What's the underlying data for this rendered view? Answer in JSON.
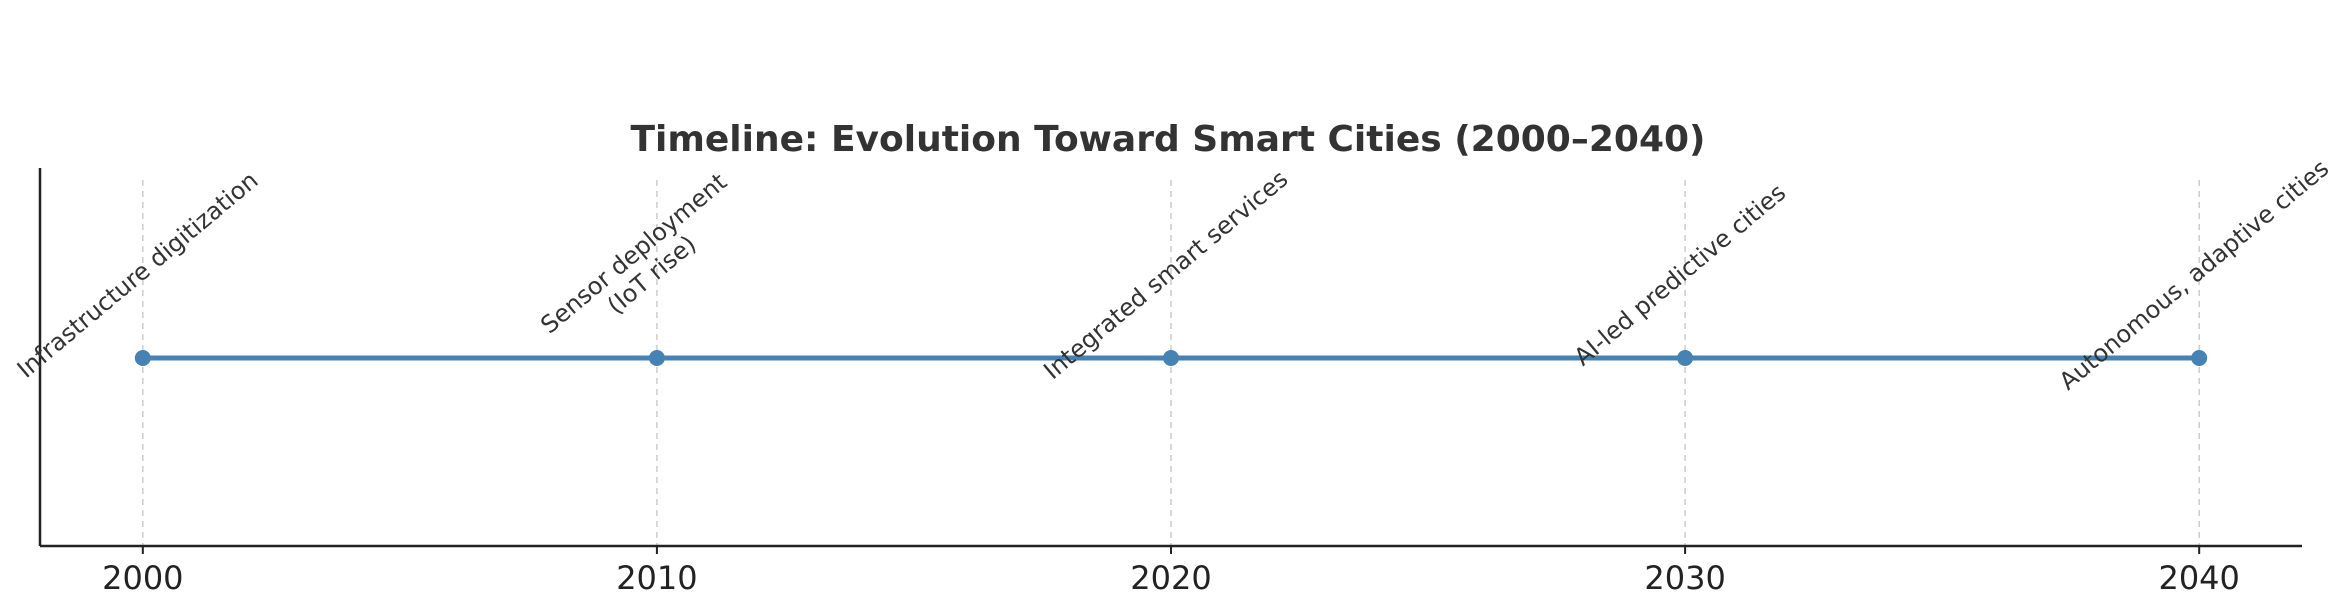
{
  "chart_data": {
    "type": "line",
    "title": "Timeline: Evolution Toward Smart Cities (2000–2040)",
    "xlabel": "",
    "ylabel": "",
    "x": [
      2000,
      2010,
      2020,
      2030,
      2040
    ],
    "y": [
      0,
      0,
      0,
      0,
      0
    ],
    "xlim": [
      1998,
      2042
    ],
    "xticks": [
      "2000",
      "2010",
      "2020",
      "2030",
      "2040"
    ],
    "events": [
      {
        "year": 2000,
        "lines": [
          "Infrastructure digitization"
        ]
      },
      {
        "year": 2010,
        "lines": [
          "Sensor deployment",
          "(IoT rise)"
        ]
      },
      {
        "year": 2020,
        "lines": [
          "Integrated smart services"
        ]
      },
      {
        "year": 2030,
        "lines": [
          "AI-led predictive cities"
        ]
      },
      {
        "year": 2040,
        "lines": [
          "Autonomous, adaptive cities"
        ]
      }
    ],
    "grid": "vertical dashed at events",
    "colors": {
      "line": "#4682b4",
      "grid": "#cccccc",
      "axis": "#222222"
    }
  }
}
